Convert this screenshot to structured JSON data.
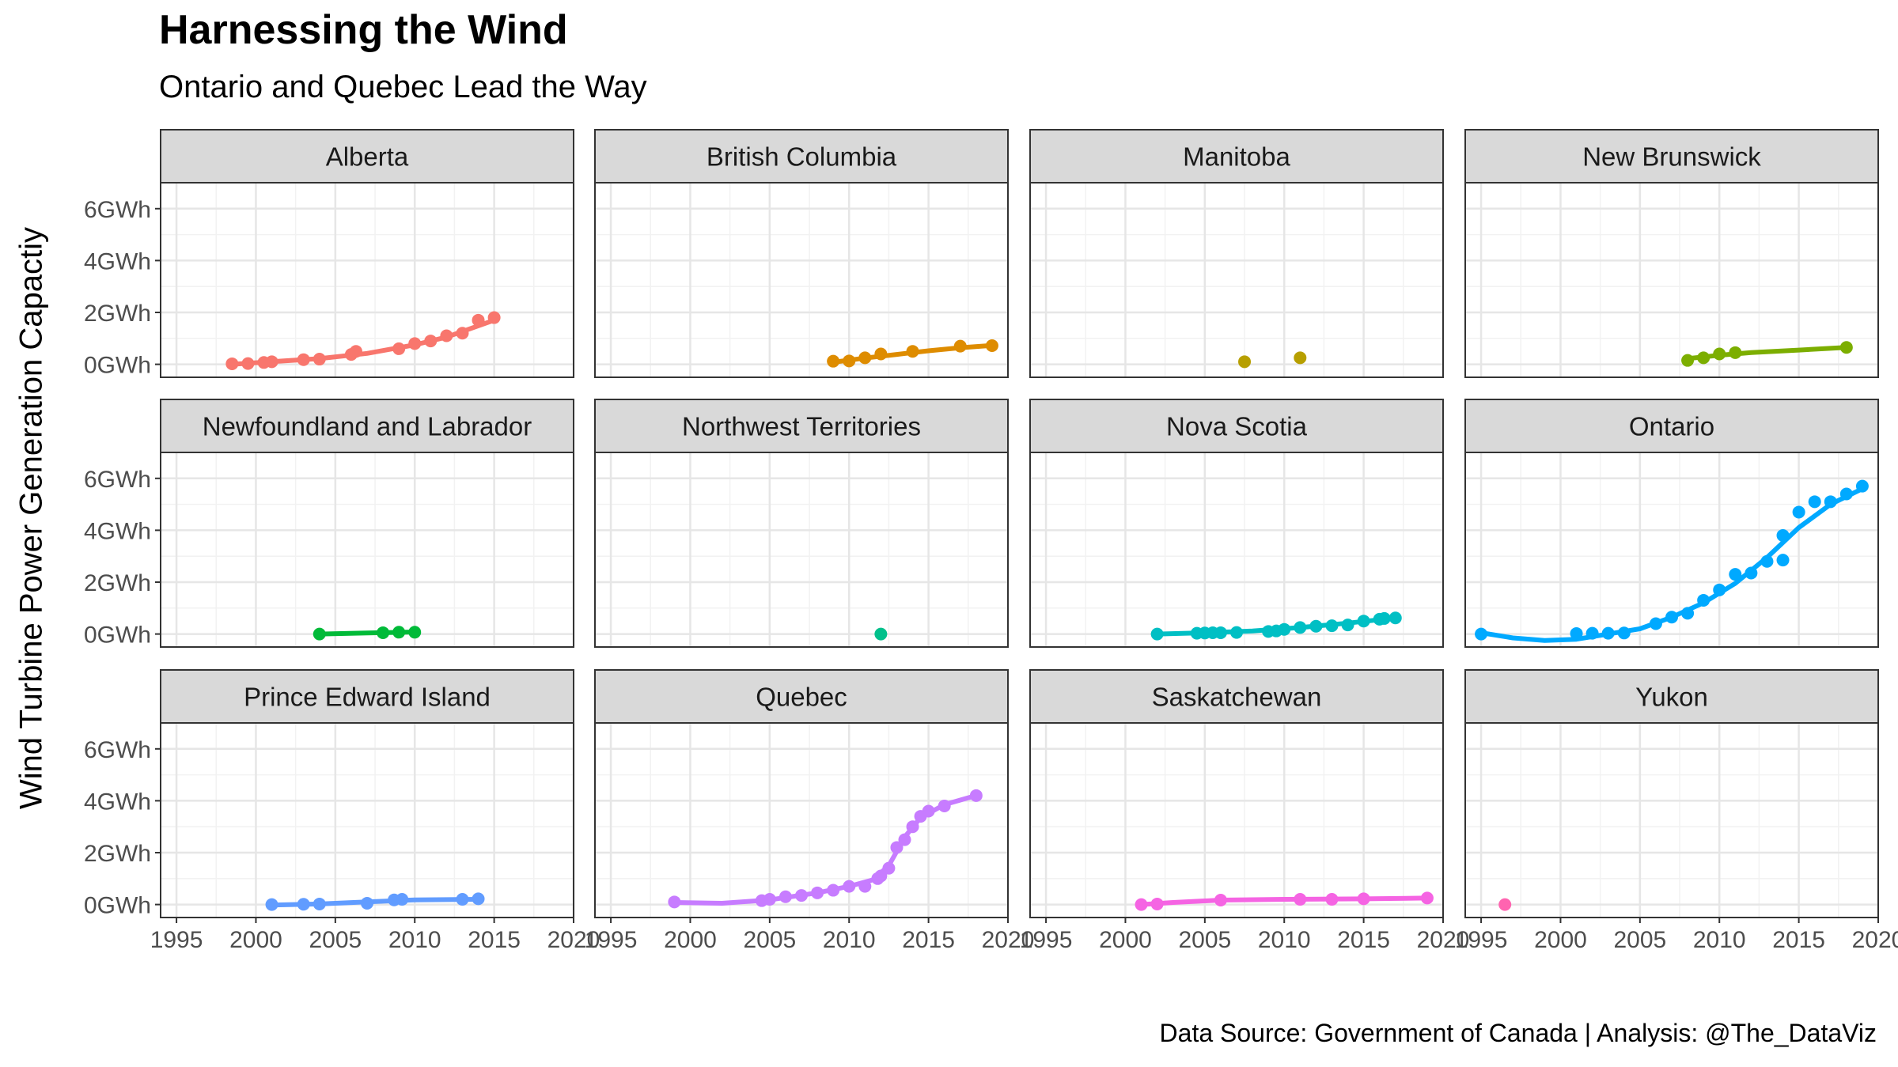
{
  "title": "Harnessing the Wind",
  "subtitle": "Ontario and Quebec Lead the Way",
  "caption": "Data Source: Government of Canada | Analysis: @The_DataViz",
  "chart_data": {
    "type": "scatter",
    "ylabel": "Wind Turbine Power Generation Capactiy",
    "xlabel": "",
    "xlim": [
      1994,
      2020
    ],
    "ylim": [
      -0.5,
      7.0
    ],
    "x_ticks": [
      1995,
      2000,
      2005,
      2010,
      2015,
      2020
    ],
    "x_tick_labels": [
      "1995",
      "2000",
      "2005",
      "2010",
      "2015",
      "2020"
    ],
    "y_ticks": [
      0,
      2,
      4,
      6
    ],
    "y_tick_labels": [
      "0GWh",
      "2GWh",
      "4GWh",
      "6GWh"
    ],
    "grid": true,
    "legend": "none",
    "smooth_line": true,
    "panels": [
      {
        "name": "Alberta",
        "color": "#F8766D",
        "points": [
          [
            1998.5,
            0.02
          ],
          [
            1999.5,
            0.03
          ],
          [
            2000.5,
            0.07
          ],
          [
            2001,
            0.1
          ],
          [
            2003,
            0.18
          ],
          [
            2004,
            0.2
          ],
          [
            2006,
            0.38
          ],
          [
            2006.3,
            0.5
          ],
          [
            2009,
            0.6
          ],
          [
            2010,
            0.8
          ],
          [
            2011,
            0.9
          ],
          [
            2012,
            1.1
          ],
          [
            2013,
            1.2
          ],
          [
            2014,
            1.7
          ],
          [
            2015,
            1.8
          ]
        ],
        "trend": [
          [
            1998.5,
            0.0
          ],
          [
            2001,
            0.1
          ],
          [
            2004,
            0.22
          ],
          [
            2007,
            0.42
          ],
          [
            2010,
            0.75
          ],
          [
            2012,
            1.05
          ],
          [
            2015,
            1.7
          ]
        ]
      },
      {
        "name": "British Columbia",
        "color": "#DE8C00",
        "points": [
          [
            2009,
            0.12
          ],
          [
            2010,
            0.13
          ],
          [
            2011,
            0.25
          ],
          [
            2012,
            0.4
          ],
          [
            2014,
            0.5
          ],
          [
            2017,
            0.7
          ],
          [
            2019,
            0.72
          ]
        ],
        "trend": [
          [
            2009,
            0.08
          ],
          [
            2011,
            0.24
          ],
          [
            2013,
            0.38
          ],
          [
            2015,
            0.52
          ],
          [
            2017,
            0.64
          ],
          [
            2019,
            0.73
          ]
        ]
      },
      {
        "name": "Manitoba",
        "color": "#B79F00",
        "points": [
          [
            2007.5,
            0.1
          ],
          [
            2011,
            0.25
          ]
        ],
        "trend": []
      },
      {
        "name": "New Brunswick",
        "color": "#7CAE00",
        "points": [
          [
            2008,
            0.15
          ],
          [
            2009,
            0.25
          ],
          [
            2010,
            0.4
          ],
          [
            2011,
            0.45
          ],
          [
            2018,
            0.65
          ]
        ],
        "trend": [
          [
            2008,
            0.22
          ],
          [
            2010,
            0.35
          ],
          [
            2012,
            0.45
          ],
          [
            2015,
            0.55
          ],
          [
            2018,
            0.65
          ]
        ]
      },
      {
        "name": "Newfoundland and Labrador",
        "color": "#00BA38",
        "points": [
          [
            2004,
            0.0
          ],
          [
            2008,
            0.05
          ],
          [
            2009,
            0.07
          ],
          [
            2010,
            0.07
          ]
        ],
        "trend": [
          [
            2004,
            0.0
          ],
          [
            2007,
            0.04
          ],
          [
            2010,
            0.08
          ]
        ]
      },
      {
        "name": "Northwest Territories",
        "color": "#00C08B",
        "points": [
          [
            2012,
            0.0
          ]
        ],
        "trend": []
      },
      {
        "name": "Nova Scotia",
        "color": "#00BFC4",
        "points": [
          [
            2002,
            0.0
          ],
          [
            2004.5,
            0.03
          ],
          [
            2005,
            0.04
          ],
          [
            2005.5,
            0.05
          ],
          [
            2006,
            0.05
          ],
          [
            2007,
            0.06
          ],
          [
            2009,
            0.1
          ],
          [
            2009.5,
            0.12
          ],
          [
            2010,
            0.18
          ],
          [
            2011,
            0.25
          ],
          [
            2012,
            0.3
          ],
          [
            2013,
            0.32
          ],
          [
            2014,
            0.35
          ],
          [
            2015,
            0.5
          ],
          [
            2016,
            0.57
          ],
          [
            2016.3,
            0.6
          ],
          [
            2017,
            0.62
          ]
        ],
        "trend": [
          [
            2002,
            0.0
          ],
          [
            2005,
            0.05
          ],
          [
            2008,
            0.12
          ],
          [
            2011,
            0.25
          ],
          [
            2014,
            0.42
          ],
          [
            2017,
            0.62
          ]
        ]
      },
      {
        "name": "Ontario",
        "color": "#00A9FF",
        "points": [
          [
            1995,
            0.0
          ],
          [
            2001,
            0.02
          ],
          [
            2002,
            0.03
          ],
          [
            2003,
            0.03
          ],
          [
            2004,
            0.04
          ],
          [
            2006,
            0.4
          ],
          [
            2007,
            0.65
          ],
          [
            2008,
            0.8
          ],
          [
            2009,
            1.3
          ],
          [
            2010,
            1.7
          ],
          [
            2011,
            2.3
          ],
          [
            2012,
            2.35
          ],
          [
            2013,
            2.8
          ],
          [
            2014,
            2.85
          ],
          [
            2014,
            3.8
          ],
          [
            2015,
            4.7
          ],
          [
            2016,
            5.1
          ],
          [
            2017,
            5.1
          ],
          [
            2018,
            5.4
          ],
          [
            2019,
            5.7
          ]
        ],
        "trend": [
          [
            1995,
            0.05
          ],
          [
            1997,
            -0.15
          ],
          [
            1999,
            -0.25
          ],
          [
            2001,
            -0.2
          ],
          [
            2003,
            0.0
          ],
          [
            2005,
            0.2
          ],
          [
            2007,
            0.65
          ],
          [
            2009,
            1.2
          ],
          [
            2011,
            1.95
          ],
          [
            2013,
            2.95
          ],
          [
            2015,
            4.1
          ],
          [
            2017,
            5.0
          ],
          [
            2019,
            5.6
          ]
        ]
      },
      {
        "name": "Prince Edward Island",
        "color": "#619CFF",
        "points": [
          [
            2001,
            0.0
          ],
          [
            2003,
            0.01
          ],
          [
            2004,
            0.02
          ],
          [
            2007,
            0.05
          ],
          [
            2008.7,
            0.18
          ],
          [
            2009.2,
            0.2
          ],
          [
            2013,
            0.2
          ],
          [
            2014,
            0.22
          ]
        ],
        "trend": [
          [
            2001,
            -0.02
          ],
          [
            2004,
            0.02
          ],
          [
            2007,
            0.1
          ],
          [
            2010,
            0.18
          ],
          [
            2014,
            0.2
          ]
        ]
      },
      {
        "name": "Quebec",
        "color": "#C77CFF",
        "points": [
          [
            1999,
            0.1
          ],
          [
            2004.5,
            0.15
          ],
          [
            2005,
            0.2
          ],
          [
            2006,
            0.3
          ],
          [
            2007,
            0.35
          ],
          [
            2008,
            0.45
          ],
          [
            2009,
            0.55
          ],
          [
            2010,
            0.7
          ],
          [
            2011,
            0.7
          ],
          [
            2011.8,
            1.0
          ],
          [
            2012,
            1.1
          ],
          [
            2012.5,
            1.4
          ],
          [
            2013,
            2.2
          ],
          [
            2013.5,
            2.5
          ],
          [
            2014,
            3.0
          ],
          [
            2014.5,
            3.4
          ],
          [
            2015,
            3.6
          ],
          [
            2016,
            3.8
          ],
          [
            2018,
            4.2
          ]
        ],
        "trend": [
          [
            1999,
            0.08
          ],
          [
            2002,
            0.05
          ],
          [
            2005,
            0.18
          ],
          [
            2008,
            0.45
          ],
          [
            2010,
            0.7
          ],
          [
            2011.5,
            0.95
          ],
          [
            2012.5,
            1.5
          ],
          [
            2013.5,
            2.6
          ],
          [
            2014.5,
            3.35
          ],
          [
            2016,
            3.85
          ],
          [
            2018,
            4.2
          ]
        ]
      },
      {
        "name": "Saskatchewan",
        "color": "#F564E3",
        "points": [
          [
            2001,
            0.0
          ],
          [
            2002,
            0.02
          ],
          [
            2006,
            0.17
          ],
          [
            2011,
            0.2
          ],
          [
            2013,
            0.2
          ],
          [
            2015,
            0.22
          ],
          [
            2019,
            0.25
          ]
        ],
        "trend": [
          [
            2001,
            0.0
          ],
          [
            2003,
            0.08
          ],
          [
            2006,
            0.17
          ],
          [
            2010,
            0.2
          ],
          [
            2015,
            0.22
          ],
          [
            2019,
            0.25
          ]
        ]
      },
      {
        "name": "Yukon",
        "color": "#FF64B0",
        "points": [
          [
            1996.5,
            0.0
          ]
        ],
        "trend": []
      }
    ]
  }
}
